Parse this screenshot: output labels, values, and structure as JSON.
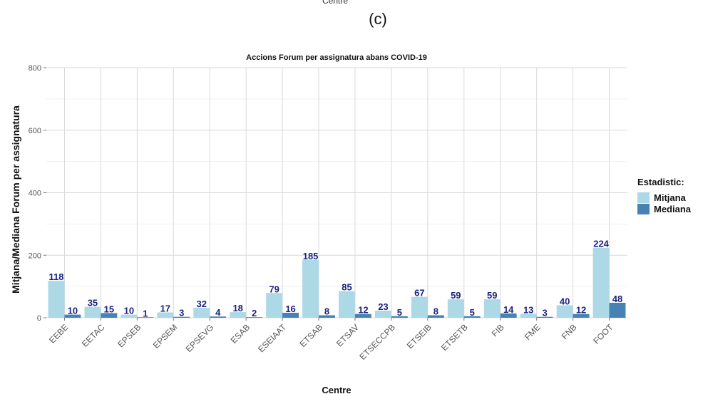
{
  "page": {
    "top_fragment": "Centre",
    "panel_label": "(c)"
  },
  "colors": {
    "mitjana": "#add8e6",
    "mediana": "#4682b4",
    "label_text": "#1a237e",
    "grid": "#d9d9d9"
  },
  "chart_data": {
    "type": "bar",
    "title": "Accions Forum per assignatura abans COVID-19",
    "xlabel": "Centre",
    "ylabel": "Mitjana/Mediana Forum per assignatura",
    "ylim": [
      0,
      800
    ],
    "yticks": [
      0,
      200,
      400,
      600,
      800
    ],
    "grid": true,
    "legend_position": "right",
    "legend_title": "Estadistic:",
    "categories": [
      "EEBE",
      "EETAC",
      "EPSEB",
      "EPSEM",
      "EPSEVG",
      "ESAB",
      "ESEIAAT",
      "ETSAB",
      "ETSAV",
      "ETSECCPB",
      "ETSEIB",
      "ETSETB",
      "FIB",
      "FME",
      "FNB",
      "FOOT"
    ],
    "series": [
      {
        "name": "Mitjana",
        "values": [
          118,
          35,
          10,
          17,
          32,
          18,
          79,
          185,
          85,
          23,
          67,
          59,
          59,
          13,
          40,
          224
        ]
      },
      {
        "name": "Mediana",
        "values": [
          10,
          15,
          1,
          3,
          4,
          2,
          16,
          8,
          12,
          5,
          8,
          5,
          14,
          3,
          12,
          48
        ]
      }
    ]
  }
}
